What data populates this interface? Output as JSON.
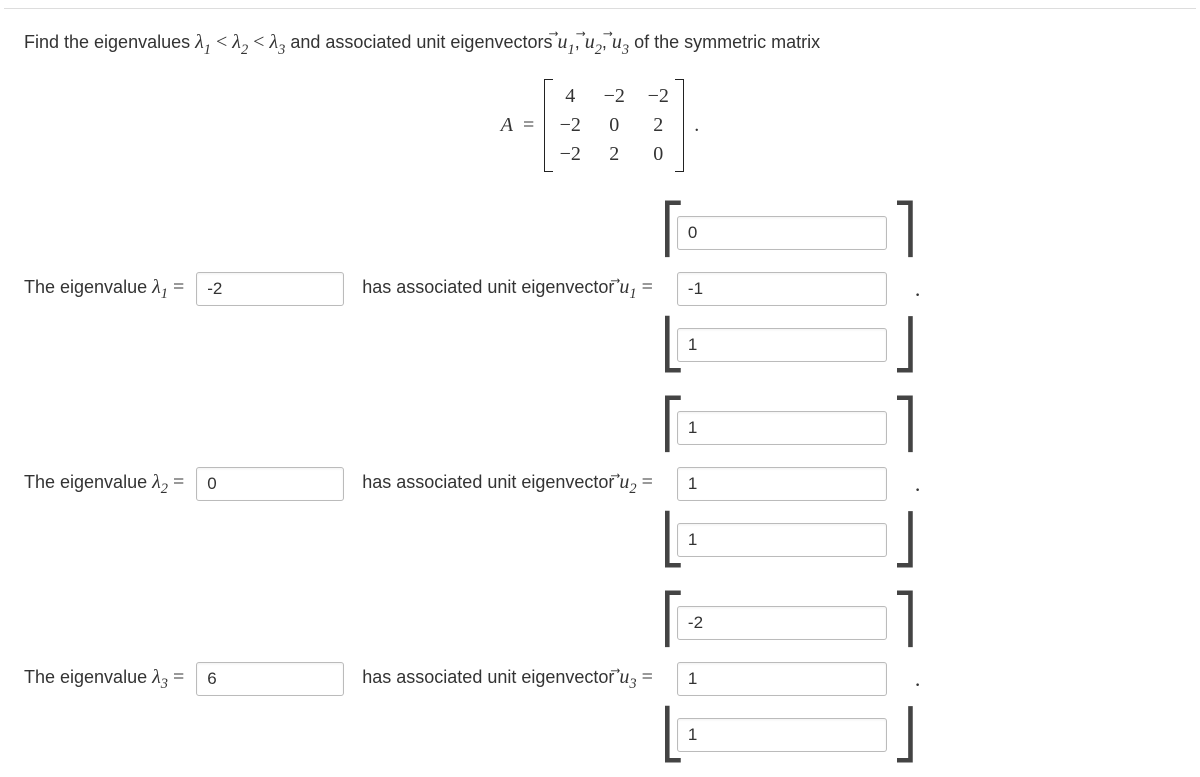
{
  "prompt": {
    "pre": "Find the eigenvalues ",
    "l1": "λ",
    "s1": "1",
    "lt1": " < ",
    "l2": "λ",
    "s2": "2",
    "lt2": " < ",
    "l3": "λ",
    "s3": "3",
    "mid": " and associated unit eigenvectors ",
    "u1": "u",
    "us1": "1",
    "c1": ", ",
    "u2": "u",
    "us2": "2",
    "c2": ", ",
    "u3": "u",
    "us3": "3",
    "post": " of the symmetric matrix"
  },
  "matrix": {
    "A": "A",
    "eq": " = ",
    "m11": "4",
    "m12": "−2",
    "m13": "−2",
    "m21": "−2",
    "m22": "0",
    "m23": "2",
    "m31": "−2",
    "m32": "2",
    "m33": "0",
    "dot": "."
  },
  "rows": {
    "r1": {
      "label_pre": "The eigenvalue ",
      "lam": "λ",
      "sub": "1",
      "eq": " = ",
      "val": "-2",
      "vec_pre": "has associated unit eigenvector ",
      "u": "u",
      "usub": "1",
      "veq": " = ",
      "v1": "0",
      "v2": "-1",
      "v3": "1",
      "dot": "."
    },
    "r2": {
      "label_pre": "The eigenvalue ",
      "lam": "λ",
      "sub": "2",
      "eq": " = ",
      "val": "0",
      "vec_pre": "has associated unit eigenvector ",
      "u": "u",
      "usub": "2",
      "veq": " = ",
      "v1": "1",
      "v2": "1",
      "v3": "1",
      "dot": "."
    },
    "r3": {
      "label_pre": "The eigenvalue ",
      "lam": "λ",
      "sub": "3",
      "eq": " = ",
      "val": "6",
      "vec_pre": "has associated unit eigenvector ",
      "u": "u",
      "usub": "3",
      "veq": " = ",
      "v1": "-2",
      "v2": "1",
      "v3": "1",
      "dot": "."
    }
  },
  "style": {
    "input_border": "#bbbbbb",
    "text_color": "#333333",
    "bg": "#ffffff",
    "font_size_body": 18,
    "font_size_math": 20,
    "input_eig_width": 148,
    "input_vec_width": 210
  },
  "brackets": {
    "tl": "⎡",
    "bl": "⎣",
    "tr": "⎤",
    "br": "⎦"
  }
}
